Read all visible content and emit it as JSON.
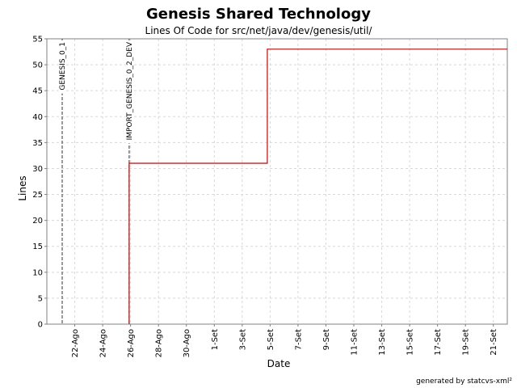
{
  "chart_data": {
    "type": "line",
    "title": "Genesis Shared Technology",
    "subtitle": "Lines Of Code for src/net/java/dev/genesis/util/",
    "xlabel": "Date",
    "ylabel": "Lines",
    "ylim": [
      0,
      55
    ],
    "yticks": [
      0,
      5,
      10,
      15,
      20,
      25,
      30,
      35,
      40,
      45,
      50,
      55
    ],
    "xlim": [
      "2005-08-20",
      "2005-09-22"
    ],
    "xticks": [
      {
        "date": "2005-08-22",
        "label": "22-Ago"
      },
      {
        "date": "2005-08-24",
        "label": "24-Ago"
      },
      {
        "date": "2005-08-26",
        "label": "26-Ago"
      },
      {
        "date": "2005-08-28",
        "label": "28-Ago"
      },
      {
        "date": "2005-08-30",
        "label": "30-Ago"
      },
      {
        "date": "2005-09-01",
        "label": "1-Set"
      },
      {
        "date": "2005-09-03",
        "label": "3-Set"
      },
      {
        "date": "2005-09-05",
        "label": "5-Set"
      },
      {
        "date": "2005-09-07",
        "label": "7-Set"
      },
      {
        "date": "2005-09-09",
        "label": "9-Set"
      },
      {
        "date": "2005-09-11",
        "label": "11-Set"
      },
      {
        "date": "2005-09-13",
        "label": "13-Set"
      },
      {
        "date": "2005-09-15",
        "label": "15-Set"
      },
      {
        "date": "2005-09-17",
        "label": "17-Set"
      },
      {
        "date": "2005-09-19",
        "label": "19-Set"
      },
      {
        "date": "2005-09-21",
        "label": "21-Set"
      }
    ],
    "series": [
      {
        "color": "#cc0000",
        "step": true,
        "points": [
          {
            "x": "2005-08-25.9",
            "y": 0
          },
          {
            "x": "2005-08-25.9",
            "y": 31
          },
          {
            "x": "2005-09-04.8",
            "y": 31
          },
          {
            "x": "2005-09-04.8",
            "y": 53
          },
          {
            "x": "2005-09-22.0",
            "y": 53
          }
        ]
      }
    ],
    "markers": [
      {
        "date": "2005-08-21.1",
        "label": "GENESIS_0_1"
      },
      {
        "date": "2005-08-25.9",
        "label": "IMPORT_GENESIS_0_2_DEV"
      }
    ],
    "grid": true,
    "legend": "none"
  },
  "footer": "generated by statcvs-xml²",
  "colors": {
    "series": "#cc0000",
    "grid": "#d8d8d8",
    "marker": "#555555",
    "axis": "#808080"
  }
}
